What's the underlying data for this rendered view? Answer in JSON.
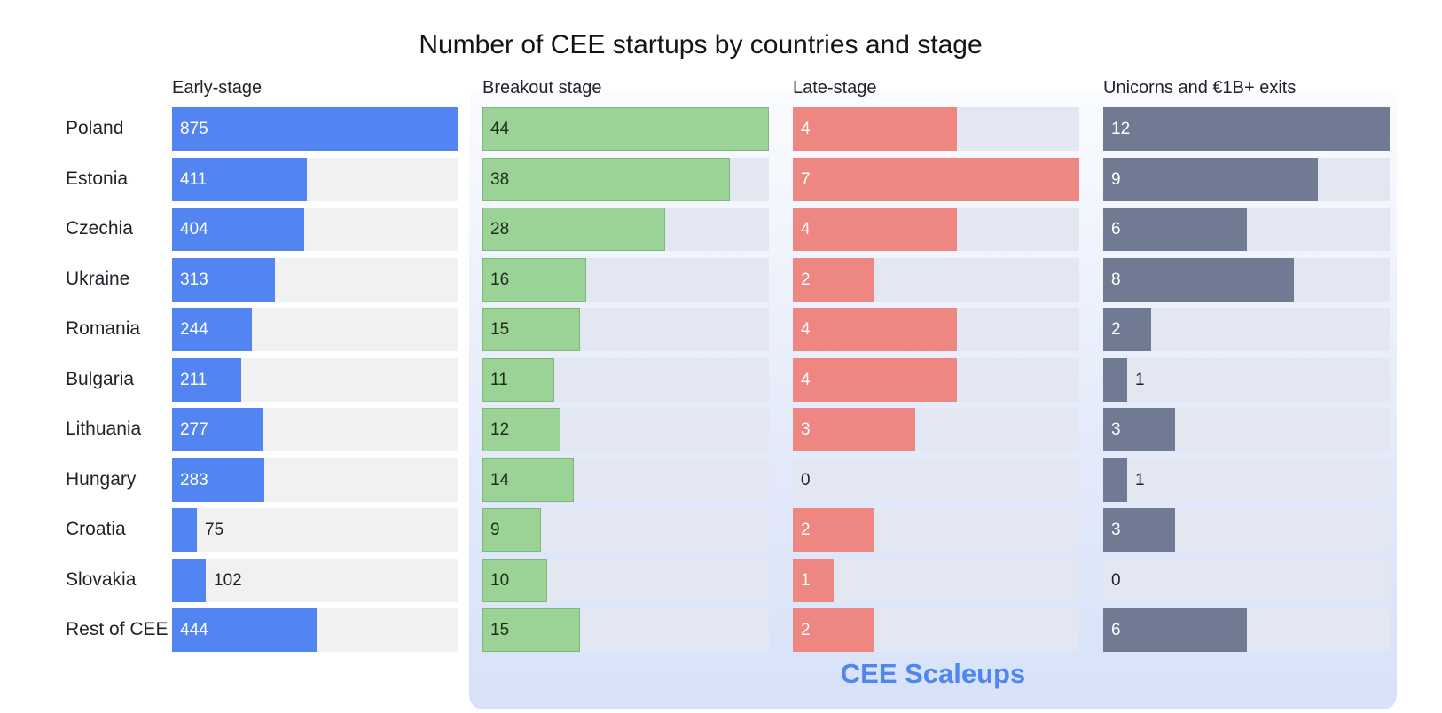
{
  "chart_data": {
    "type": "bar",
    "title": "Number of CEE startups by countries and stage",
    "categories": [
      "Poland",
      "Estonia",
      "Czechia",
      "Ukraine",
      "Romania",
      "Bulgaria",
      "Lithuania",
      "Hungary",
      "Croatia",
      "Slovakia",
      "Rest of CEE"
    ],
    "series": [
      {
        "name": "Early-stage",
        "values": [
          875,
          411,
          404,
          313,
          244,
          211,
          277,
          283,
          75,
          102,
          444
        ],
        "max": 875,
        "color": "#5284f2",
        "text_color": "#ffffff"
      },
      {
        "name": "Breakout stage",
        "values": [
          44,
          38,
          28,
          16,
          15,
          11,
          12,
          14,
          9,
          10,
          15
        ],
        "max": 44,
        "color": "#9bd296",
        "text_color": "#1f2d1f"
      },
      {
        "name": "Late-stage",
        "values": [
          4,
          7,
          4,
          2,
          4,
          4,
          3,
          0,
          2,
          1,
          2
        ],
        "max": 7,
        "color": "#ee8682",
        "text_color": "#ffffff"
      },
      {
        "name": "Unicorns and €1B+ exits",
        "values": [
          12,
          9,
          6,
          8,
          2,
          1,
          3,
          1,
          3,
          0,
          6
        ],
        "max": 12,
        "color": "#707b93",
        "text_color": "#ffffff"
      }
    ],
    "highlight_label": "CEE Scaleups",
    "colors": {
      "highlight_text": "#4f86f0",
      "track_plain": "#f1f1f2",
      "track_highlight": "#e3e7f1"
    }
  }
}
